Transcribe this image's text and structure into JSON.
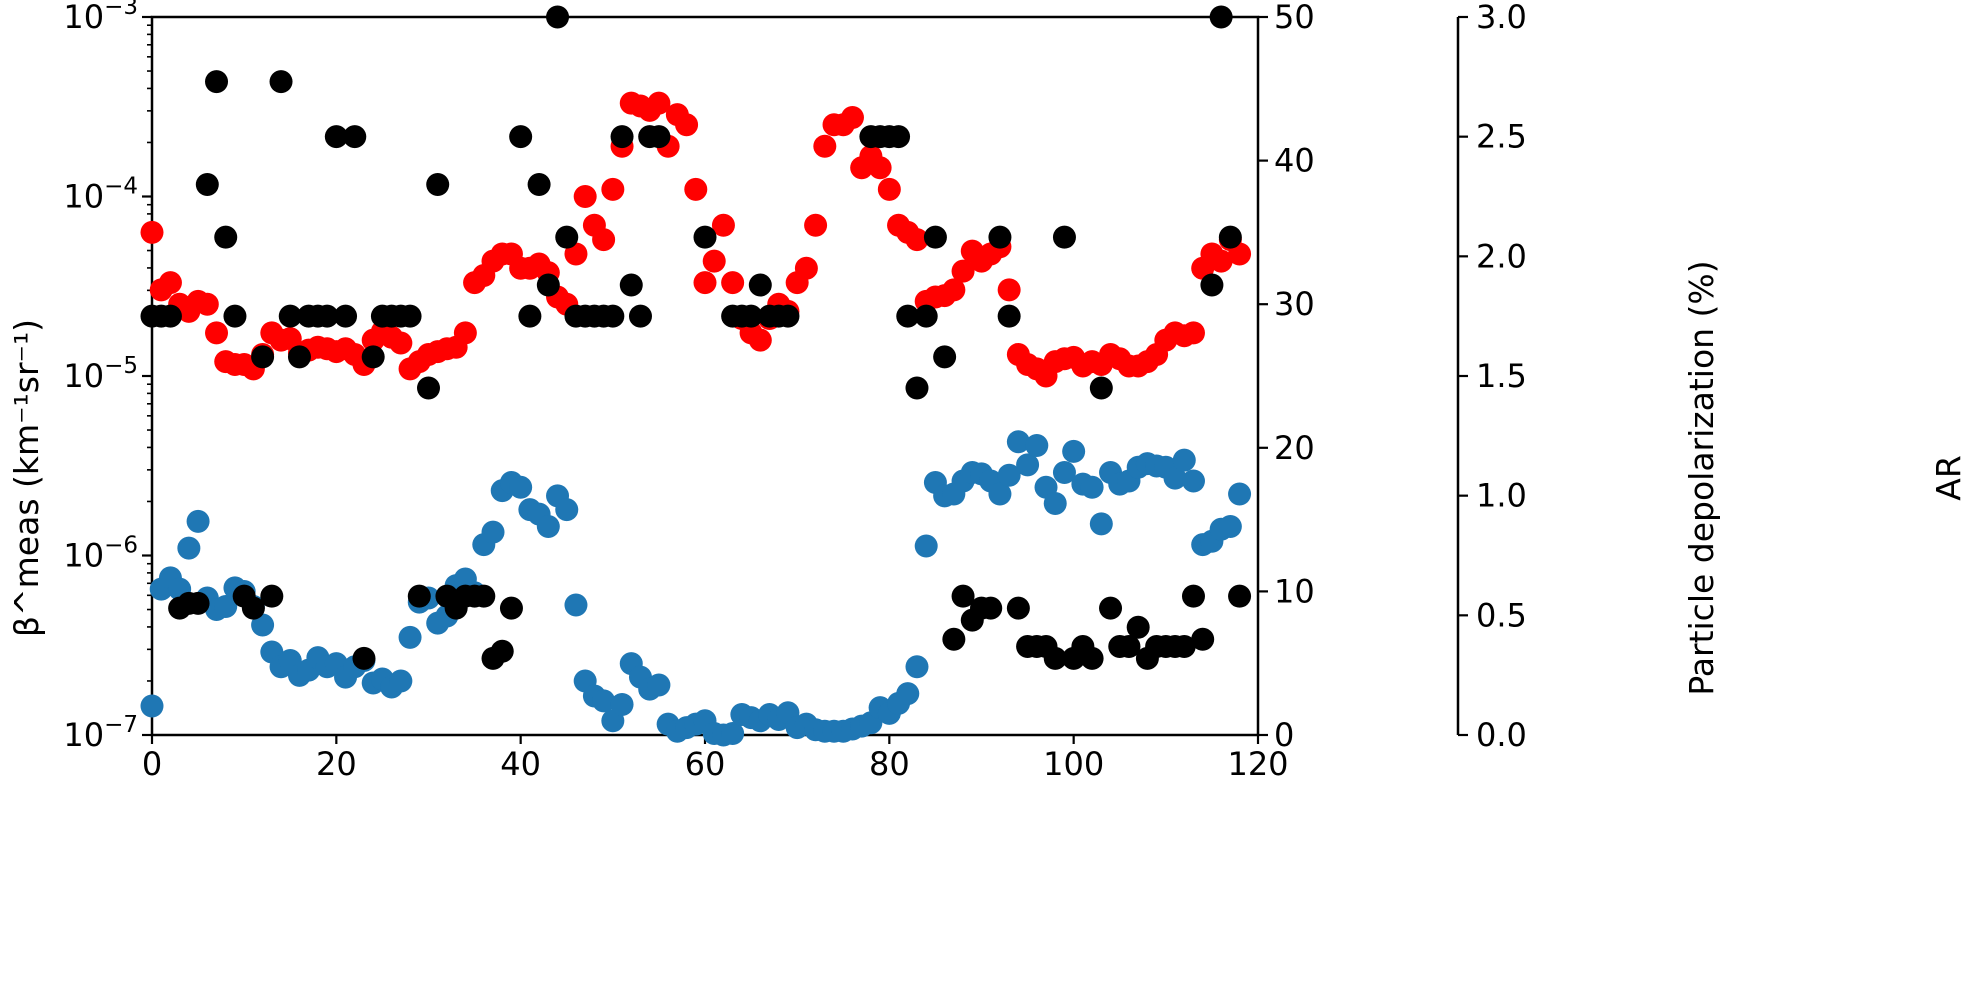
{
  "chart_data": {
    "type": "scatter",
    "x_ticks": [
      "0",
      "20",
      "40",
      "60",
      "80",
      "100",
      "120"
    ],
    "xlim": [
      0,
      120
    ],
    "y_left": {
      "label": "β^meas (km⁻¹sr⁻¹)",
      "scale": "log",
      "ylim": [
        1e-07,
        0.001
      ],
      "tick_labels": [
        {
          "value": 1e-07,
          "base": "10",
          "exp": "−7"
        },
        {
          "value": 1e-06,
          "base": "10",
          "exp": "−6"
        },
        {
          "value": 1e-05,
          "base": "10",
          "exp": "−5"
        },
        {
          "value": 0.0001,
          "base": "10",
          "exp": "−4"
        },
        {
          "value": 0.001,
          "base": "10",
          "exp": "−3"
        }
      ]
    },
    "y_right": {
      "label": "Particle depolarization (%)",
      "ylim": [
        0,
        50
      ],
      "tick_labels": [
        "0",
        "10",
        "20",
        "30",
        "40",
        "50"
      ]
    },
    "y_ar": {
      "label": "AR",
      "ylim": [
        0,
        3
      ],
      "tick_labels": [
        "0.0",
        "0.5",
        "1.0",
        "1.5",
        "2.0",
        "2.5",
        "3.0"
      ]
    },
    "series": [
      {
        "axis": "left",
        "color": "#1f77b4",
        "x": [
          0,
          1,
          2,
          3,
          4,
          5,
          6,
          7,
          8,
          9,
          10,
          11,
          12,
          13,
          14,
          15,
          16,
          17,
          18,
          19,
          20,
          21,
          22,
          23,
          24,
          25,
          26,
          27,
          28,
          29,
          30,
          31,
          32,
          33,
          34,
          35,
          36,
          37,
          38,
          39,
          40,
          41,
          42,
          43,
          44,
          45,
          46,
          47,
          48,
          49,
          50,
          51,
          52,
          53,
          54,
          55,
          56,
          57,
          58,
          59,
          60,
          61,
          62,
          63,
          64,
          65,
          66,
          67,
          68,
          69,
          70,
          71,
          72,
          73,
          74,
          75,
          76,
          77,
          78,
          79,
          80,
          81,
          82,
          83,
          84,
          85,
          86,
          87,
          88,
          89,
          90,
          91,
          92,
          93,
          94,
          95,
          96,
          97,
          98,
          99,
          100,
          101,
          102,
          103,
          104,
          105,
          106,
          107,
          108,
          109,
          110,
          111,
          112,
          113,
          114,
          115,
          116,
          117,
          118
        ],
        "y": [
          1.45e-07,
          6.5e-07,
          7.5e-07,
          6.5e-07,
          1.1e-06,
          1.55e-06,
          5.8e-07,
          5e-07,
          5.2e-07,
          6.6e-07,
          6.3e-07,
          5.2e-07,
          4.1e-07,
          2.9e-07,
          2.4e-07,
          2.6e-07,
          2.15e-07,
          2.3e-07,
          2.7e-07,
          2.4e-07,
          2.5e-07,
          2.1e-07,
          2.4e-07,
          2.6e-07,
          1.95e-07,
          2.05e-07,
          1.85e-07,
          2e-07,
          3.5e-07,
          5.5e-07,
          5.8e-07,
          4.2e-07,
          4.6e-07,
          6.8e-07,
          7.4e-07,
          6.2e-07,
          1.15e-06,
          1.35e-06,
          2.3e-06,
          2.55e-06,
          2.4e-06,
          1.8e-06,
          1.7e-06,
          1.45e-06,
          2.15e-06,
          1.8e-06,
          5.3e-07,
          2e-07,
          1.65e-07,
          1.55e-07,
          1.2e-07,
          1.48e-07,
          2.5e-07,
          2.1e-07,
          1.8e-07,
          1.9e-07,
          1.15e-07,
          1.05e-07,
          1.1e-07,
          1.15e-07,
          1.2e-07,
          1.02e-07,
          1e-07,
          1.02e-07,
          1.3e-07,
          1.25e-07,
          1.2e-07,
          1.3e-07,
          1.22e-07,
          1.33e-07,
          1.1e-07,
          1.15e-07,
          1.07e-07,
          1.05e-07,
          1.05e-07,
          1.05e-07,
          1.08e-07,
          1.12e-07,
          1.17e-07,
          1.42e-07,
          1.32e-07,
          1.5e-07,
          1.7e-07,
          2.4e-07,
          1.13e-06,
          2.55e-06,
          2.15e-06,
          2.2e-06,
          2.6e-06,
          2.9e-06,
          2.85e-06,
          2.6e-06,
          2.2e-06,
          2.8e-06,
          4.3e-06,
          3.2e-06,
          4.1e-06,
          2.4e-06,
          1.95e-06,
          2.9e-06,
          3.8e-06,
          2.5e-06,
          2.4e-06,
          1.5e-06,
          2.9e-06,
          2.5e-06,
          2.6e-06,
          3.1e-06,
          3.25e-06,
          3.15e-06,
          3.1e-06,
          2.7e-06,
          3.4e-06,
          2.6e-06,
          1.15e-06,
          1.2e-06,
          1.4e-06,
          1.45e-06,
          2.2e-06
        ]
      },
      {
        "axis": "right",
        "color": "#ff0000",
        "x": [
          0,
          1,
          2,
          3,
          4,
          5,
          6,
          7,
          8,
          9,
          10,
          11,
          12,
          13,
          14,
          15,
          16,
          17,
          18,
          19,
          20,
          21,
          22,
          23,
          24,
          25,
          26,
          27,
          28,
          29,
          30,
          31,
          32,
          33,
          34,
          35,
          36,
          37,
          38,
          39,
          40,
          41,
          42,
          43,
          44,
          45,
          46,
          47,
          48,
          49,
          50,
          51,
          52,
          53,
          54,
          55,
          56,
          57,
          58,
          59,
          60,
          61,
          62,
          63,
          64,
          65,
          66,
          67,
          68,
          69,
          70,
          71,
          72,
          73,
          74,
          75,
          76,
          77,
          78,
          79,
          80,
          81,
          82,
          83,
          84,
          85,
          86,
          87,
          88,
          89,
          90,
          91,
          92,
          93,
          94,
          95,
          96,
          97,
          98,
          99,
          100,
          101,
          102,
          103,
          104,
          105,
          106,
          107,
          108,
          109,
          110,
          111,
          112,
          113,
          114,
          115,
          116,
          117,
          118
        ],
        "y": [
          35,
          31,
          31.5,
          30,
          29.5,
          30.2,
          30,
          28,
          26,
          25.8,
          25.8,
          25.5,
          26.5,
          28,
          27.5,
          27.6,
          26.6,
          26.8,
          27,
          26.9,
          26.7,
          26.9,
          26.5,
          25.8,
          27.5,
          28.1,
          27.7,
          27.3,
          25.5,
          26,
          26.5,
          26.7,
          26.9,
          27,
          28,
          31.5,
          32,
          33,
          33.5,
          33.5,
          32.5,
          32.5,
          32.8,
          32.2,
          30.5,
          30,
          33.5,
          37.5,
          35.5,
          34.5,
          38,
          41,
          44,
          43.8,
          43.5,
          44,
          41,
          43.2,
          42.5,
          38,
          31.5,
          33,
          35.5,
          31.5,
          29,
          28,
          27.5,
          29,
          30,
          29.5,
          31.5,
          32.5,
          35.5,
          41,
          42.5,
          42.5,
          43,
          39.5,
          40.3,
          39.5,
          38,
          35.5,
          35,
          34.5,
          30.2,
          30.5,
          30.6,
          31,
          32.3,
          33.7,
          33,
          33.5,
          34,
          31,
          26.5,
          25.8,
          25.5,
          25,
          26,
          26.2,
          26.3,
          25.7,
          26,
          25.8,
          26.5,
          26.2,
          25.7,
          25.7,
          26,
          26.5,
          27.5,
          28,
          27.8,
          28,
          32.5,
          33.5,
          33,
          34.5,
          33.5
        ]
      },
      {
        "axis": "ar",
        "color": "#000000",
        "x": [
          0,
          1,
          2,
          3,
          4,
          5,
          6,
          7,
          8,
          9,
          10,
          11,
          12,
          13,
          14,
          15,
          16,
          17,
          18,
          19,
          20,
          21,
          22,
          23,
          24,
          25,
          26,
          27,
          28,
          29,
          30,
          31,
          32,
          33,
          34,
          35,
          36,
          37,
          38,
          39,
          40,
          41,
          42,
          43,
          44,
          45,
          46,
          47,
          48,
          49,
          50,
          51,
          52,
          53,
          54,
          55,
          60,
          63,
          64,
          65,
          66,
          67,
          68,
          69,
          78,
          79,
          80,
          81,
          82,
          83,
          84,
          85,
          86,
          87,
          88,
          89,
          90,
          91,
          92,
          93,
          94,
          95,
          96,
          97,
          98,
          99,
          100,
          101,
          102,
          103,
          104,
          105,
          106,
          107,
          108,
          109,
          110,
          111,
          112,
          113,
          114,
          115,
          116,
          117,
          118
        ],
        "y": [
          1.75,
          1.75,
          1.75,
          0.53,
          0.55,
          0.55,
          2.3,
          2.73,
          2.08,
          1.75,
          0.58,
          0.53,
          1.58,
          0.58,
          2.73,
          1.75,
          1.58,
          1.75,
          1.75,
          1.75,
          2.5,
          1.75,
          2.5,
          0.32,
          1.58,
          1.75,
          1.75,
          1.75,
          1.75,
          0.58,
          1.45,
          2.3,
          0.58,
          0.53,
          0.58,
          0.58,
          0.58,
          0.32,
          0.35,
          0.53,
          2.5,
          1.75,
          2.3,
          1.88,
          3.0,
          2.08,
          1.75,
          1.75,
          1.75,
          1.75,
          1.75,
          2.5,
          1.88,
          1.75,
          2.5,
          2.5,
          2.08,
          1.75,
          1.75,
          1.75,
          1.88,
          1.75,
          1.75,
          1.75,
          2.5,
          2.5,
          2.5,
          2.5,
          1.75,
          1.45,
          1.75,
          2.08,
          1.58,
          0.4,
          0.58,
          0.48,
          0.53,
          0.53,
          2.08,
          1.75,
          0.53,
          0.37,
          0.37,
          0.37,
          0.32,
          2.08,
          0.32,
          0.37,
          0.32,
          1.45,
          0.53,
          0.37,
          0.37,
          0.45,
          0.32,
          0.37,
          0.37,
          0.37,
          0.37,
          0.58,
          0.4,
          1.88,
          3.0,
          2.08,
          0.58
        ]
      }
    ]
  }
}
